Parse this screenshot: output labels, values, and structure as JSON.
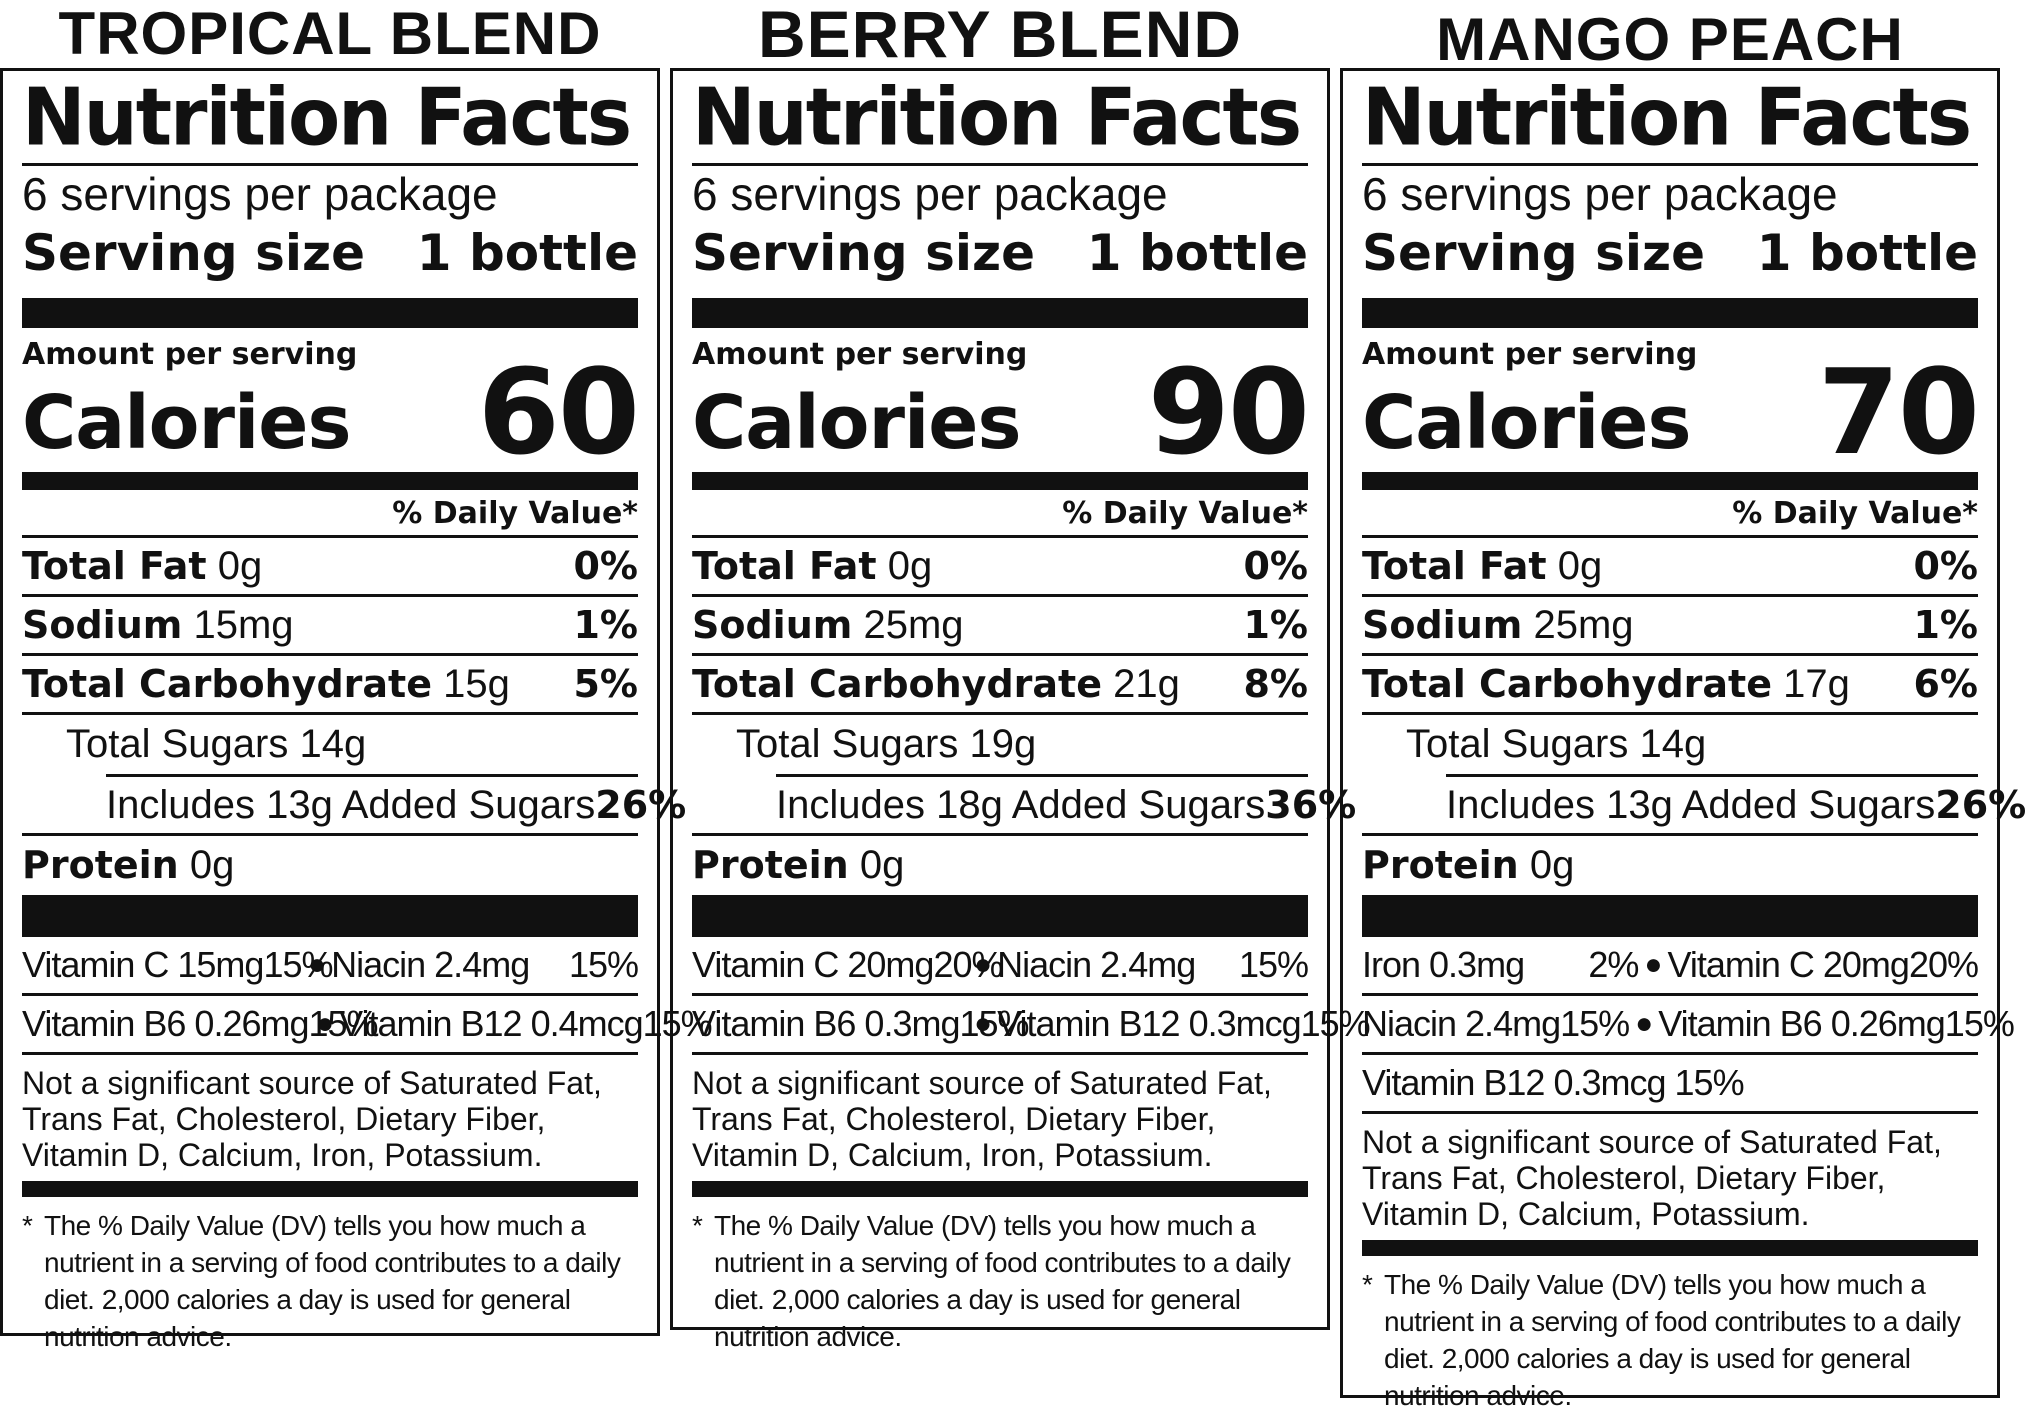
{
  "labels": [
    {
      "flavor": "TROPICAL BLEND",
      "title": "Nutrition Facts",
      "servings_per_package": "6 servings per package",
      "serving_size_label": "Serving size",
      "serving_size_value": "1 bottle",
      "amount_per_serving": "Amount per serving",
      "calories_label": "Calories",
      "calories_value": "60",
      "dv_header": "% Daily Value*",
      "total_fat": {
        "label": "Total Fat",
        "amount": "0g",
        "dv": "0%"
      },
      "sodium": {
        "label": "Sodium",
        "amount": "15mg",
        "dv": "1%"
      },
      "total_carb": {
        "label": "Total Carbohydrate",
        "amount": "15g",
        "dv": "5%"
      },
      "total_sugars": "Total Sugars 14g",
      "added_sugars": {
        "text": "Includes 13g Added Sugars",
        "dv": "26%"
      },
      "protein": {
        "label": "Protein",
        "amount": "0g"
      },
      "vitamin_rows": [
        [
          {
            "name": "Vitamin C 15mg",
            "dv": "15%"
          },
          {
            "name": "Niacin 2.4mg",
            "dv": "15%"
          }
        ],
        [
          {
            "name": "Vitamin B6 0.26mg",
            "dv": "15%"
          },
          {
            "name": "Vitamin B12 0.4mcg",
            "dv": "15%"
          }
        ]
      ],
      "not_significant": "Not a significant source of Saturated Fat, Trans Fat, Cholesterol, Dietary Fiber, Vitamin D, Calcium, Iron, Potassium.",
      "footnote": "The % Daily Value (DV) tells you how much a nutrient in a serving of food contributes to a daily diet. 2,000 calories a day is used for general nutrition advice."
    },
    {
      "flavor": "BERRY BLEND",
      "title": "Nutrition Facts",
      "servings_per_package": "6 servings per package",
      "serving_size_label": "Serving size",
      "serving_size_value": "1 bottle",
      "amount_per_serving": "Amount per serving",
      "calories_label": "Calories",
      "calories_value": "90",
      "dv_header": "% Daily Value*",
      "total_fat": {
        "label": "Total Fat",
        "amount": "0g",
        "dv": "0%"
      },
      "sodium": {
        "label": "Sodium",
        "amount": "25mg",
        "dv": "1%"
      },
      "total_carb": {
        "label": "Total Carbohydrate",
        "amount": "21g",
        "dv": "8%"
      },
      "total_sugars": "Total Sugars 19g",
      "added_sugars": {
        "text": "Includes 18g Added Sugars",
        "dv": "36%"
      },
      "protein": {
        "label": "Protein",
        "amount": "0g"
      },
      "vitamin_rows": [
        [
          {
            "name": "Vitamin C 20mg",
            "dv": "20%"
          },
          {
            "name": "Niacin 2.4mg",
            "dv": "15%"
          }
        ],
        [
          {
            "name": "Vitamin B6 0.3mg",
            "dv": "15%"
          },
          {
            "name": "Vitamin B12 0.3mcg",
            "dv": "15%"
          }
        ]
      ],
      "not_significant": "Not a significant source of Saturated Fat, Trans Fat, Cholesterol, Dietary Fiber, Vitamin D, Calcium, Iron, Potassium.",
      "footnote": "The % Daily Value (DV) tells you how much a nutrient in a serving of food contributes to a daily diet. 2,000 calories a day is used for general nutrition advice."
    },
    {
      "flavor": "MANGO PEACH",
      "title": "Nutrition Facts",
      "servings_per_package": "6 servings per package",
      "serving_size_label": "Serving size",
      "serving_size_value": "1 bottle",
      "amount_per_serving": "Amount per serving",
      "calories_label": "Calories",
      "calories_value": "70",
      "dv_header": "% Daily Value*",
      "total_fat": {
        "label": "Total Fat",
        "amount": "0g",
        "dv": "0%"
      },
      "sodium": {
        "label": "Sodium",
        "amount": "25mg",
        "dv": "1%"
      },
      "total_carb": {
        "label": "Total Carbohydrate",
        "amount": "17g",
        "dv": "6%"
      },
      "total_sugars": "Total Sugars 14g",
      "added_sugars": {
        "text": "Includes 13g Added Sugars",
        "dv": "26%"
      },
      "protein": {
        "label": "Protein",
        "amount": "0g"
      },
      "vitamin_rows": [
        [
          {
            "name": "Iron 0.3mg",
            "dv": "2%"
          },
          {
            "name": "Vitamin C 20mg",
            "dv": "20%"
          }
        ],
        [
          {
            "name": "Niacin 2.4mg",
            "dv": "15%"
          },
          {
            "name": "Vitamin B6 0.26mg",
            "dv": "15%"
          }
        ]
      ],
      "vitamin_extra": {
        "name": "Vitamin B12 0.3mcg",
        "dv": "15%"
      },
      "not_significant": "Not a significant source of Saturated Fat, Trans Fat, Cholesterol, Dietary Fiber, Vitamin D, Calcium, Potassium.",
      "footnote": "The % Daily Value (DV) tells you how much a nutrient in a serving of food contributes to a daily diet. 2,000 calories a day is used for general nutrition advice."
    }
  ]
}
